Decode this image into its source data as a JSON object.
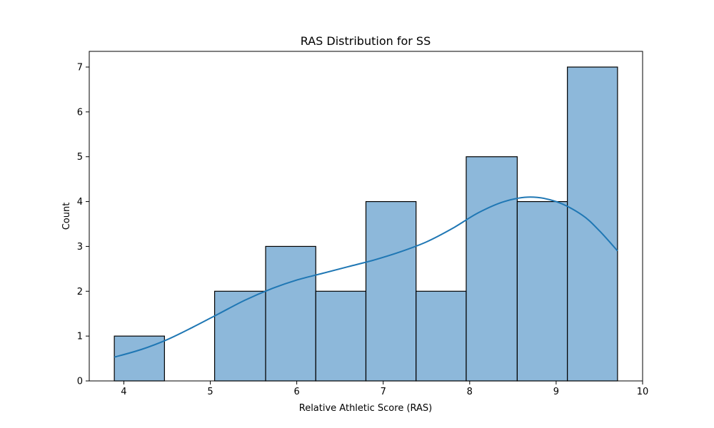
{
  "chart_data": {
    "type": "bar",
    "title": "RAS Distribution for SS",
    "xlabel": "Relative Athletic Score (RAS)",
    "ylabel": "Count",
    "xlim": [
      3.6,
      10.0
    ],
    "ylim": [
      0,
      7.35
    ],
    "xticks": [
      4,
      5,
      6,
      7,
      8,
      9,
      10
    ],
    "yticks": [
      0,
      1,
      2,
      3,
      4,
      5,
      6,
      7
    ],
    "grid": false,
    "bins": [
      {
        "start": 3.89,
        "end": 4.47,
        "count": 1
      },
      {
        "start": 4.47,
        "end": 5.05,
        "count": 0
      },
      {
        "start": 5.05,
        "end": 5.64,
        "count": 2
      },
      {
        "start": 5.64,
        "end": 6.22,
        "count": 3
      },
      {
        "start": 6.22,
        "end": 6.8,
        "count": 2
      },
      {
        "start": 6.8,
        "end": 7.38,
        "count": 4
      },
      {
        "start": 7.38,
        "end": 7.96,
        "count": 2
      },
      {
        "start": 7.96,
        "end": 8.55,
        "count": 5
      },
      {
        "start": 8.55,
        "end": 9.13,
        "count": 4
      },
      {
        "start": 9.13,
        "end": 9.71,
        "count": 7
      }
    ],
    "kde": {
      "x": [
        3.89,
        4.2,
        4.5,
        4.8,
        5.1,
        5.4,
        5.7,
        6.0,
        6.3,
        6.6,
        6.9,
        7.2,
        7.5,
        7.8,
        8.1,
        8.4,
        8.7,
        9.0,
        9.3,
        9.5,
        9.71
      ],
      "y": [
        0.53,
        0.7,
        0.92,
        1.2,
        1.5,
        1.8,
        2.05,
        2.25,
        2.4,
        2.55,
        2.7,
        2.88,
        3.1,
        3.4,
        3.75,
        4.0,
        4.1,
        4.0,
        3.7,
        3.35,
        2.9
      ]
    },
    "colors": {
      "bar_fill": "#8db8da",
      "bar_edge": "#000000",
      "kde_line": "#1f77b4"
    }
  }
}
